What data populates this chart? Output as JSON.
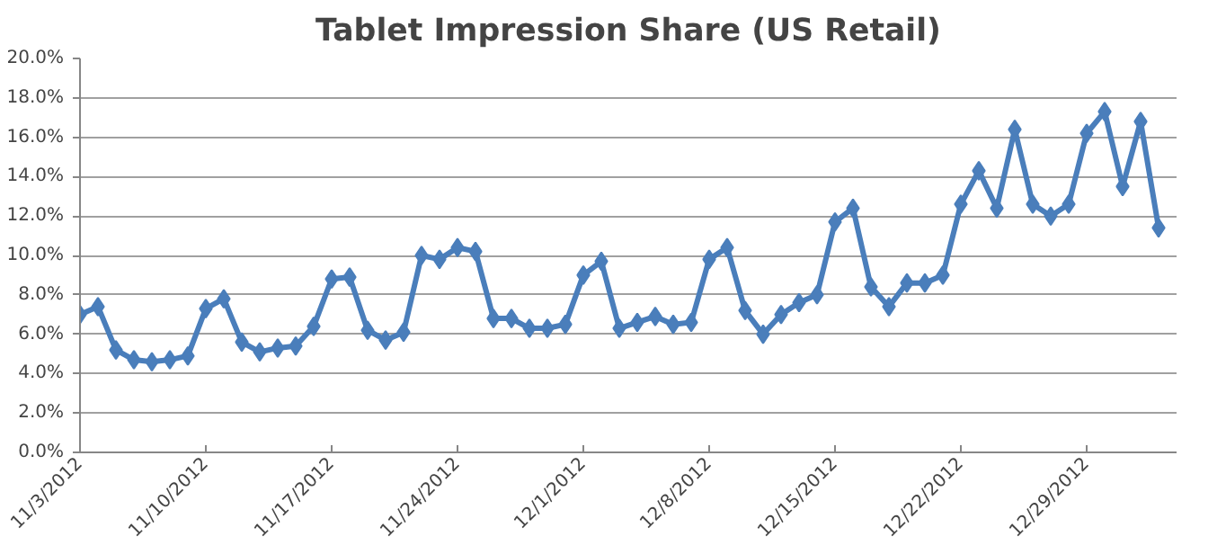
{
  "chart_data": {
    "type": "line",
    "title": "Tablet Impression Share (US Retail)",
    "x": [
      "2012-11-03",
      "2012-11-04",
      "2012-11-05",
      "2012-11-06",
      "2012-11-07",
      "2012-11-08",
      "2012-11-09",
      "2012-11-10",
      "2012-11-11",
      "2012-11-12",
      "2012-11-13",
      "2012-11-14",
      "2012-11-15",
      "2012-11-16",
      "2012-11-17",
      "2012-11-18",
      "2012-11-19",
      "2012-11-20",
      "2012-11-21",
      "2012-11-22",
      "2012-11-23",
      "2012-11-24",
      "2012-11-25",
      "2012-11-26",
      "2012-11-27",
      "2012-11-28",
      "2012-11-29",
      "2012-11-30",
      "2012-12-01",
      "2012-12-02",
      "2012-12-03",
      "2012-12-04",
      "2012-12-05",
      "2012-12-06",
      "2012-12-07",
      "2012-12-08",
      "2012-12-09",
      "2012-12-10",
      "2012-12-11",
      "2012-12-12",
      "2012-12-13",
      "2012-12-14",
      "2012-12-15",
      "2012-12-16",
      "2012-12-17",
      "2012-12-18",
      "2012-12-19",
      "2012-12-20",
      "2012-12-21",
      "2012-12-22",
      "2012-12-23",
      "2012-12-24",
      "2012-12-25",
      "2012-12-26",
      "2012-12-27",
      "2012-12-28",
      "2012-12-29",
      "2012-12-30",
      "2012-12-31",
      "2013-01-01",
      "2013-01-02"
    ],
    "series": [
      {
        "color": "#4a7ebb",
        "values": [
          7.0,
          7.4,
          5.2,
          4.7,
          4.6,
          4.7,
          4.9,
          7.3,
          7.8,
          5.6,
          5.1,
          5.3,
          5.4,
          6.4,
          8.8,
          8.9,
          6.2,
          5.7,
          6.1,
          10.0,
          9.8,
          10.4,
          10.2,
          6.8,
          6.8,
          6.3,
          6.3,
          6.5,
          9.0,
          9.7,
          6.3,
          6.6,
          6.9,
          6.5,
          6.6,
          9.8,
          10.4,
          7.2,
          6.0,
          7.0,
          7.6,
          8.0,
          11.7,
          12.4,
          8.4,
          7.4,
          8.6,
          8.6,
          9.0,
          12.6,
          14.3,
          12.4,
          16.4,
          12.6,
          12.0,
          12.6,
          16.2,
          17.3,
          13.5,
          16.8,
          11.4
        ]
      }
    ],
    "xlim": [
      "2012-11-03",
      "2013-01-03"
    ],
    "xticks": [
      {
        "value": "2012-11-03",
        "label": "11/3/2012"
      },
      {
        "value": "2012-11-10",
        "label": "11/10/2012"
      },
      {
        "value": "2012-11-17",
        "label": "11/17/2012"
      },
      {
        "value": "2012-11-24",
        "label": "11/24/2012"
      },
      {
        "value": "2012-12-01",
        "label": "12/1/2012"
      },
      {
        "value": "2012-12-08",
        "label": "12/8/2012"
      },
      {
        "value": "2012-12-15",
        "label": "12/15/2012"
      },
      {
        "value": "2012-12-22",
        "label": "12/22/2012"
      },
      {
        "value": "2012-12-29",
        "label": "12/29/2012"
      }
    ],
    "ylim": [
      0,
      20
    ],
    "yticks": [
      {
        "value": 0,
        "label": "0.0%"
      },
      {
        "value": 2,
        "label": "2.0%"
      },
      {
        "value": 4,
        "label": "4.0%"
      },
      {
        "value": 6,
        "label": "6.0%"
      },
      {
        "value": 8,
        "label": "8.0%"
      },
      {
        "value": 10,
        "label": "10.0%"
      },
      {
        "value": 12,
        "label": "12.0%"
      },
      {
        "value": 14,
        "label": "14.0%"
      },
      {
        "value": 16,
        "label": "16.0%"
      },
      {
        "value": 18,
        "label": "18.0%"
      },
      {
        "value": 20,
        "label": "20.0%"
      }
    ],
    "grid": "y",
    "marker": "diamond",
    "line_style": "solid"
  }
}
